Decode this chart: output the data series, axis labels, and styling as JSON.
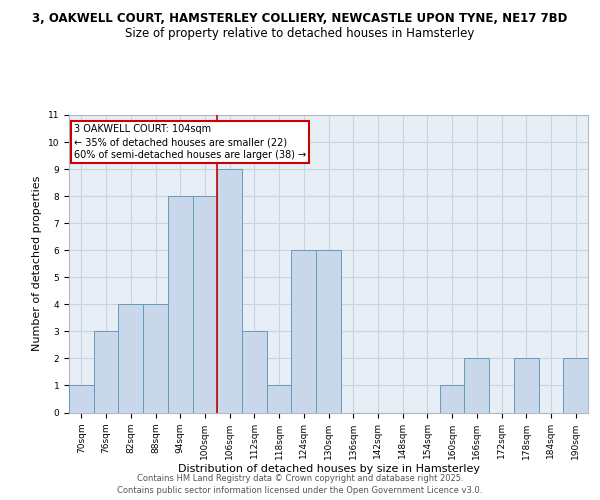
{
  "title_line1": "3, OAKWELL COURT, HAMSTERLEY COLLIERY, NEWCASTLE UPON TYNE, NE17 7BD",
  "title_line2": "Size of property relative to detached houses in Hamsterley",
  "xlabel": "Distribution of detached houses by size in Hamsterley",
  "ylabel": "Number of detached properties",
  "categories": [
    "70sqm",
    "76sqm",
    "82sqm",
    "88sqm",
    "94sqm",
    "100sqm",
    "106sqm",
    "112sqm",
    "118sqm",
    "124sqm",
    "130sqm",
    "136sqm",
    "142sqm",
    "148sqm",
    "154sqm",
    "160sqm",
    "166sqm",
    "172sqm",
    "178sqm",
    "184sqm",
    "190sqm"
  ],
  "values": [
    1,
    3,
    4,
    4,
    8,
    8,
    9,
    3,
    1,
    6,
    6,
    0,
    0,
    0,
    0,
    1,
    2,
    0,
    2,
    0,
    2
  ],
  "bar_color": "#c8d8ea",
  "bar_edge_color": "#6699bb",
  "vline_x_index": 5.5,
  "vline_color": "#cc0000",
  "annotation_line1": "3 OAKWELL COURT: 104sqm",
  "annotation_line2": "← 35% of detached houses are smaller (22)",
  "annotation_line3": "60% of semi-detached houses are larger (38) →",
  "annotation_box_color": "#ffffff",
  "annotation_box_edge": "#cc0000",
  "ylim": [
    0,
    11
  ],
  "yticks": [
    0,
    1,
    2,
    3,
    4,
    5,
    6,
    7,
    8,
    9,
    10,
    11
  ],
  "grid_color": "#c8d4e0",
  "background_color": "#e8eef6",
  "footer_line1": "Contains HM Land Registry data © Crown copyright and database right 2025.",
  "footer_line2": "Contains public sector information licensed under the Open Government Licence v3.0.",
  "title1_fontsize": 8.5,
  "title2_fontsize": 8.5,
  "axis_label_fontsize": 8,
  "tick_fontsize": 6.5,
  "annotation_fontsize": 7,
  "footer_fontsize": 6
}
